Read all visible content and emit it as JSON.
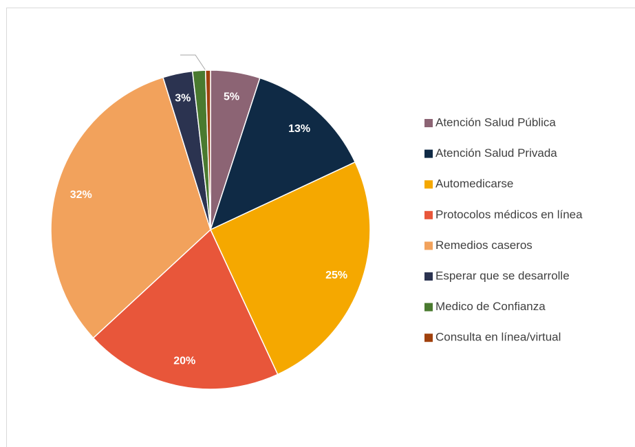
{
  "chart_data": {
    "type": "pie",
    "categories": [
      "Atención Salud Pública",
      "Atención Salud Privada",
      "Automedicarse",
      "Protocolos médicos en línea",
      "Remedios caseros",
      "Esperar que se desarrolle",
      "Medico de Confianza",
      "Consulta en línea/virtual"
    ],
    "values": [
      5,
      13,
      25,
      20,
      32,
      3,
      1.3,
      0.5
    ],
    "value_labels": [
      "5%",
      "13%",
      "25%",
      "20%",
      "32%",
      "3%",
      null,
      null
    ],
    "colors": [
      "#8c6474",
      "#0f2a45",
      "#f5a800",
      "#e8563a",
      "#f2a25c",
      "#2b3350",
      "#4a7a2f",
      "#a0410d"
    ],
    "legend": "right"
  }
}
